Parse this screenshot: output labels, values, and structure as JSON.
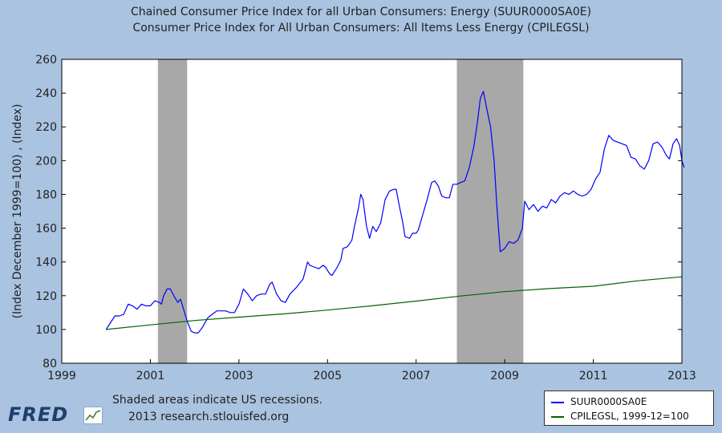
{
  "titles": {
    "line1": "Chained Consumer Price Index for all Urban Consumers: Energy (SUUR0000SA0E)",
    "line2": "Consumer Price Index for All Urban Consumers: All Items Less Energy (CPILEGSL)"
  },
  "notes": {
    "recession": "Shaded areas indicate US recessions.",
    "source": "2013 research.stlouisfed.org"
  },
  "logo": {
    "text": "FRED"
  },
  "colors": {
    "background": "#a9c3e0",
    "plot": "#ffffff",
    "recession": "#a8a8a8",
    "energy": "#0000ff",
    "core": "#006400"
  },
  "chart_data": {
    "type": "line",
    "title": "",
    "xlabel": "",
    "ylabel": "(Index December 1999=100) , (Index)",
    "xlim": [
      1999,
      2013
    ],
    "ylim": [
      80,
      260
    ],
    "x_ticks": [
      "1999",
      "2001",
      "2003",
      "2005",
      "2007",
      "2009",
      "2011",
      "2013"
    ],
    "y_ticks": [
      "80",
      "100",
      "120",
      "140",
      "160",
      "180",
      "200",
      "220",
      "240",
      "260"
    ],
    "grid": false,
    "legend_position": "bottom-right",
    "recessions": [
      [
        2001.17,
        2001.83
      ],
      [
        2007.92,
        2009.42
      ]
    ],
    "series": [
      {
        "name": "SUUR0000SA0E",
        "color": "#0000ff",
        "points": [
          [
            2000.0,
            100
          ],
          [
            2000.1,
            104
          ],
          [
            2000.2,
            108
          ],
          [
            2000.3,
            108
          ],
          [
            2000.4,
            109
          ],
          [
            2000.5,
            115
          ],
          [
            2000.6,
            114
          ],
          [
            2000.7,
            112
          ],
          [
            2000.8,
            115
          ],
          [
            2000.9,
            114
          ],
          [
            2001.0,
            114
          ],
          [
            2001.1,
            117
          ],
          [
            2001.2,
            116
          ],
          [
            2001.25,
            115
          ],
          [
            2001.3,
            120
          ],
          [
            2001.38,
            124
          ],
          [
            2001.45,
            124
          ],
          [
            2001.55,
            119
          ],
          [
            2001.62,
            116
          ],
          [
            2001.68,
            118
          ],
          [
            2001.75,
            112
          ],
          [
            2001.83,
            105
          ],
          [
            2001.92,
            99
          ],
          [
            2002.0,
            98
          ],
          [
            2002.08,
            98
          ],
          [
            2002.17,
            101
          ],
          [
            2002.3,
            107
          ],
          [
            2002.4,
            109
          ],
          [
            2002.5,
            111
          ],
          [
            2002.7,
            111
          ],
          [
            2002.8,
            110
          ],
          [
            2002.9,
            110
          ],
          [
            2003.0,
            115
          ],
          [
            2003.1,
            124
          ],
          [
            2003.2,
            121
          ],
          [
            2003.3,
            117
          ],
          [
            2003.4,
            120
          ],
          [
            2003.5,
            121
          ],
          [
            2003.6,
            121
          ],
          [
            2003.7,
            127
          ],
          [
            2003.75,
            128
          ],
          [
            2003.85,
            121
          ],
          [
            2003.95,
            117
          ],
          [
            2004.05,
            116
          ],
          [
            2004.15,
            121
          ],
          [
            2004.3,
            125
          ],
          [
            2004.45,
            130
          ],
          [
            2004.55,
            140
          ],
          [
            2004.6,
            138
          ],
          [
            2004.7,
            137
          ],
          [
            2004.8,
            136
          ],
          [
            2004.9,
            138
          ],
          [
            2004.95,
            137
          ],
          [
            2005.05,
            133
          ],
          [
            2005.1,
            132
          ],
          [
            2005.2,
            136
          ],
          [
            2005.3,
            141
          ],
          [
            2005.35,
            148
          ],
          [
            2005.45,
            149
          ],
          [
            2005.55,
            153
          ],
          [
            2005.6,
            160
          ],
          [
            2005.7,
            172
          ],
          [
            2005.75,
            180
          ],
          [
            2005.8,
            177
          ],
          [
            2005.88,
            161
          ],
          [
            2005.95,
            154
          ],
          [
            2006.02,
            161
          ],
          [
            2006.1,
            158
          ],
          [
            2006.2,
            163
          ],
          [
            2006.3,
            177
          ],
          [
            2006.4,
            182
          ],
          [
            2006.5,
            183
          ],
          [
            2006.55,
            183
          ],
          [
            2006.6,
            176
          ],
          [
            2006.7,
            163
          ],
          [
            2006.75,
            155
          ],
          [
            2006.85,
            154
          ],
          [
            2006.92,
            157
          ],
          [
            2007.0,
            157
          ],
          [
            2007.05,
            159
          ],
          [
            2007.15,
            168
          ],
          [
            2007.25,
            177
          ],
          [
            2007.35,
            187
          ],
          [
            2007.42,
            188
          ],
          [
            2007.5,
            185
          ],
          [
            2007.58,
            179
          ],
          [
            2007.67,
            178
          ],
          [
            2007.75,
            178
          ],
          [
            2007.83,
            186
          ],
          [
            2007.92,
            186
          ],
          [
            2008.0,
            187
          ],
          [
            2008.1,
            188
          ],
          [
            2008.2,
            196
          ],
          [
            2008.3,
            208
          ],
          [
            2008.38,
            222
          ],
          [
            2008.45,
            237
          ],
          [
            2008.52,
            241
          ],
          [
            2008.6,
            230
          ],
          [
            2008.68,
            220
          ],
          [
            2008.76,
            200
          ],
          [
            2008.83,
            170
          ],
          [
            2008.9,
            146
          ],
          [
            2009.0,
            148
          ],
          [
            2009.1,
            152
          ],
          [
            2009.2,
            151
          ],
          [
            2009.3,
            153
          ],
          [
            2009.4,
            160
          ],
          [
            2009.45,
            176
          ],
          [
            2009.55,
            171
          ],
          [
            2009.65,
            174
          ],
          [
            2009.75,
            170
          ],
          [
            2009.85,
            173
          ],
          [
            2009.95,
            172
          ],
          [
            2010.05,
            177
          ],
          [
            2010.15,
            175
          ],
          [
            2010.25,
            179
          ],
          [
            2010.35,
            181
          ],
          [
            2010.45,
            180
          ],
          [
            2010.55,
            182
          ],
          [
            2010.65,
            180
          ],
          [
            2010.75,
            179
          ],
          [
            2010.85,
            180
          ],
          [
            2010.95,
            183
          ],
          [
            2011.05,
            189
          ],
          [
            2011.15,
            193
          ],
          [
            2011.25,
            207
          ],
          [
            2011.35,
            215
          ],
          [
            2011.45,
            212
          ],
          [
            2011.55,
            211
          ],
          [
            2011.65,
            210
          ],
          [
            2011.75,
            209
          ],
          [
            2011.85,
            202
          ],
          [
            2011.95,
            201
          ],
          [
            2012.05,
            197
          ],
          [
            2012.15,
            195
          ],
          [
            2012.25,
            200
          ],
          [
            2012.35,
            210
          ],
          [
            2012.45,
            211
          ],
          [
            2012.55,
            208
          ],
          [
            2012.65,
            203
          ],
          [
            2012.72,
            201
          ],
          [
            2012.8,
            210
          ],
          [
            2012.88,
            213
          ],
          [
            2012.95,
            209
          ],
          [
            2013.0,
            200
          ],
          [
            2013.05,
            196
          ]
        ]
      },
      {
        "name": "CPILEGSL, 1999-12=100",
        "color": "#006400",
        "points": [
          [
            2000.0,
            100
          ],
          [
            2001.0,
            102.7
          ],
          [
            2002.0,
            105.3
          ],
          [
            2003.0,
            107.3
          ],
          [
            2004.0,
            109.2
          ],
          [
            2005.0,
            111.5
          ],
          [
            2006.0,
            114.0
          ],
          [
            2007.0,
            116.8
          ],
          [
            2008.0,
            119.8
          ],
          [
            2009.0,
            122.4
          ],
          [
            2010.0,
            124.2
          ],
          [
            2011.0,
            125.6
          ],
          [
            2012.0,
            128.8
          ],
          [
            2013.0,
            131.2
          ]
        ]
      }
    ]
  }
}
